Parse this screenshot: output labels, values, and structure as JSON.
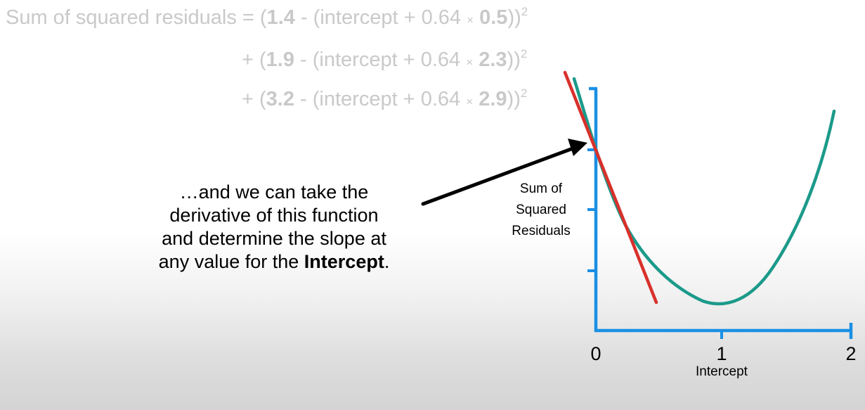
{
  "equation": {
    "line1_prefix": "Sum of squared residuals = (",
    "line1_observed": "1.4",
    "line1_mid": " - (intercept + 0.64 ",
    "line1_times": "×",
    "line1_x": "0.5",
    "line1_close": "))",
    "line1_sup": "2",
    "line2_prefix": "+ (",
    "line2_observed": "1.9",
    "line2_mid": " - (intercept + 0.64 ",
    "line2_times": "×",
    "line2_x": "2.3",
    "line2_close": "))",
    "line2_sup": "2",
    "line3_prefix": "+ (",
    "line3_observed": "3.2",
    "line3_mid": " - (intercept + 0.64 ",
    "line3_times": "×",
    "line3_x": "2.9",
    "line3_close": "))",
    "line3_sup": "2"
  },
  "caption": {
    "line1": "…and we can take the",
    "line2": "derivative of this function",
    "line3": "and determine the slope at",
    "line4_prefix": "any value for the ",
    "line4_bold": "Intercept",
    "line4_suffix": "."
  },
  "graph": {
    "ylabel_line1": "Sum of",
    "ylabel_line2": "Squared",
    "ylabel_line3": "Residuals",
    "xlabel": "Intercept",
    "x_ticks": [
      "0",
      "1",
      "2"
    ]
  },
  "colors": {
    "axis": "#1a8fe3",
    "curve": "#1b9a8a",
    "tangent": "#d9302b",
    "arrow": "#000000",
    "equation_text": "#c9c9c9"
  }
}
